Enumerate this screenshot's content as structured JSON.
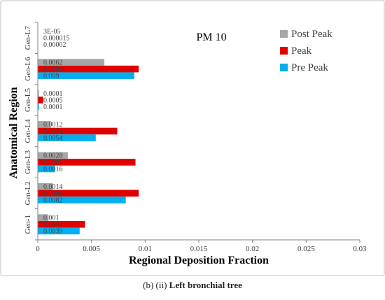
{
  "chart_data": {
    "type": "bar",
    "orientation": "horizontal",
    "categories": [
      "Gen-1",
      "Gen-L2",
      "Gen-L3",
      "Gen-L4",
      "Gen-L5",
      "Gen-L6",
      "Gen-L7"
    ],
    "series": [
      {
        "name": "Post Peak",
        "color": "#a6a6a6",
        "values": [
          0.001,
          0.0014,
          0.0028,
          0.0012,
          0.0001,
          0.0062,
          3e-05
        ],
        "labels": [
          "0.001",
          "0.0014",
          "0.0028",
          "0.0012",
          "0.0001",
          "0.0062",
          "3E-05"
        ]
      },
      {
        "name": "Peak",
        "color": "#e00000",
        "values": [
          0.0044,
          0.0094,
          0.0091,
          0.0074,
          0.0005,
          0.0094,
          1.5e-05
        ],
        "labels": [
          "0.0044",
          "0.0094",
          "0.0091",
          "0.0074",
          "0.0005",
          "0.0094",
          "0.000015"
        ]
      },
      {
        "name": "Pre Peak",
        "color": "#00b0f0",
        "values": [
          0.0039,
          0.0082,
          0.0016,
          0.0054,
          0.0001,
          0.009,
          2e-05
        ],
        "labels": [
          "0.0039",
          "0.0082",
          "0.0016",
          "0.0054",
          "0.0001",
          "0.009",
          "0.00002"
        ]
      }
    ],
    "title": "PM 10",
    "xlabel": "Regional Deposition Fraction",
    "ylabel": "Anatomical Region",
    "xlim": [
      0,
      0.03
    ],
    "xticks": [
      "0",
      "0.005",
      "0.01",
      "0.015",
      "0.02",
      "0.025",
      "0.03"
    ],
    "legend": {
      "placement": "top-right",
      "order": [
        "Post Peak",
        "Peak",
        "Pre Peak"
      ]
    },
    "grid": false
  },
  "caption": {
    "prefix": "(b) (ii) ",
    "bold": "Left bronchial tree"
  }
}
